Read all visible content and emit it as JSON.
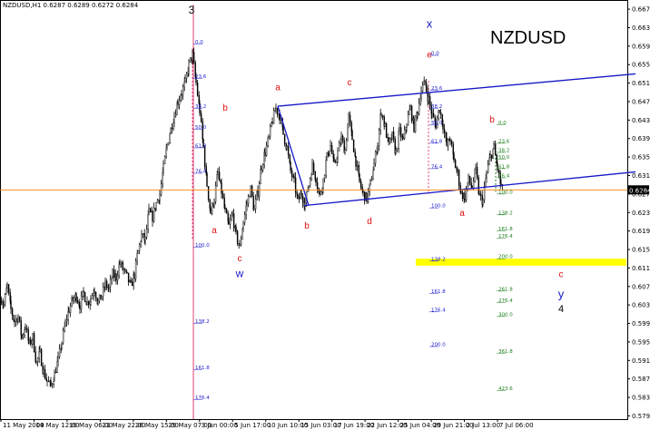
{
  "header": {
    "text": "NZDUSD,H1  0.6287 0.6289 0.6272 0.6284"
  },
  "symbol_label": "NZDUSD",
  "colors": {
    "candle": "#000000",
    "channel": "#1818c8",
    "wave_red": "#e01010",
    "wave_blue": "#1818c8",
    "fib_blue": "#2020d0",
    "fib_green": "#208020",
    "highlight": "#ffff00",
    "current_price": "#ff8000"
  },
  "chart_data": {
    "type": "candlestick",
    "timeframe": "H1",
    "ylim": [
      0.5788,
      0.6685
    ],
    "y_ticks": [
      "0.6675",
      "0.6635",
      "0.6595",
      "0.6555",
      "0.6515",
      "0.6475",
      "0.6435",
      "0.6395",
      "0.6355",
      "0.6315",
      "0.6275",
      "0.6235",
      "0.6195",
      "0.6155",
      "0.6115",
      "0.6075",
      "0.6035",
      "0.5995",
      "0.5955",
      "0.5915",
      "0.5875",
      "0.5835",
      "0.5795"
    ],
    "current_price": "0.6284",
    "x_ticks": [
      "11 May 2009",
      "14 May 12:00",
      "19 May 06:00",
      "21 May 22:00",
      "26 May 15:00",
      "29 May 07:00",
      "3 Jun 00:00",
      "5 Jun 17:00",
      "10 Jun 10:00",
      "15 Jun 03:00",
      "17 Jun 19:00",
      "22 Jun 12:00",
      "25 Jun 04:00",
      "29 Jun 21:00",
      "2 Jul 13:00",
      "7 Jul 06:00"
    ],
    "price_path": [
      [
        0,
        0.6055
      ],
      [
        4,
        0.6035
      ],
      [
        8,
        0.6075
      ],
      [
        12,
        0.6025
      ],
      [
        16,
        0.6
      ],
      [
        20,
        0.601
      ],
      [
        24,
        0.5965
      ],
      [
        28,
        0.599
      ],
      [
        32,
        0.595
      ],
      [
        36,
        0.5965
      ],
      [
        40,
        0.591
      ],
      [
        44,
        0.593
      ],
      [
        48,
        0.589
      ],
      [
        52,
        0.587
      ],
      [
        56,
        0.586
      ],
      [
        60,
        0.5885
      ],
      [
        64,
        0.5915
      ],
      [
        68,
        0.5955
      ],
      [
        72,
        0.5995
      ],
      [
        76,
        0.6025
      ],
      [
        80,
        0.6045
      ],
      [
        84,
        0.6055
      ],
      [
        88,
        0.6035
      ],
      [
        92,
        0.606
      ],
      [
        96,
        0.604
      ],
      [
        100,
        0.605
      ],
      [
        104,
        0.607
      ],
      [
        108,
        0.604
      ],
      [
        112,
        0.6055
      ],
      [
        116,
        0.608
      ],
      [
        120,
        0.607
      ],
      [
        124,
        0.61
      ],
      [
        128,
        0.6095
      ],
      [
        132,
        0.6125
      ],
      [
        136,
        0.611
      ],
      [
        140,
        0.6095
      ],
      [
        144,
        0.6075
      ],
      [
        148,
        0.61
      ],
      [
        152,
        0.615
      ],
      [
        156,
        0.6185
      ],
      [
        160,
        0.6175
      ],
      [
        164,
        0.6235
      ],
      [
        168,
        0.6225
      ],
      [
        172,
        0.6255
      ],
      [
        176,
        0.6275
      ],
      [
        180,
        0.633
      ],
      [
        184,
        0.638
      ],
      [
        188,
        0.6415
      ],
      [
        192,
        0.6445
      ],
      [
        196,
        0.6475
      ],
      [
        200,
        0.6495
      ],
      [
        204,
        0.6515
      ],
      [
        208,
        0.6555
      ],
      [
        212,
        0.6575
      ],
      [
        216,
        0.6515
      ],
      [
        220,
        0.6455
      ],
      [
        224,
        0.6375
      ],
      [
        228,
        0.6295
      ],
      [
        232,
        0.6235
      ],
      [
        236,
        0.6265
      ],
      [
        240,
        0.632
      ],
      [
        244,
        0.628
      ],
      [
        248,
        0.6235
      ],
      [
        252,
        0.6205
      ],
      [
        256,
        0.623
      ],
      [
        260,
        0.6185
      ],
      [
        264,
        0.616
      ],
      [
        268,
        0.6215
      ],
      [
        272,
        0.6255
      ],
      [
        276,
        0.6285
      ],
      [
        280,
        0.624
      ],
      [
        284,
        0.628
      ],
      [
        288,
        0.6335
      ],
      [
        292,
        0.6365
      ],
      [
        296,
        0.6395
      ],
      [
        300,
        0.6435
      ],
      [
        304,
        0.646
      ],
      [
        308,
        0.6445
      ],
      [
        312,
        0.6405
      ],
      [
        316,
        0.6375
      ],
      [
        320,
        0.6325
      ],
      [
        324,
        0.63
      ],
      [
        328,
        0.626
      ],
      [
        332,
        0.6275
      ],
      [
        336,
        0.6255
      ],
      [
        340,
        0.6295
      ],
      [
        344,
        0.6335
      ],
      [
        348,
        0.631
      ],
      [
        352,
        0.627
      ],
      [
        356,
        0.6305
      ],
      [
        360,
        0.6355
      ],
      [
        364,
        0.638
      ],
      [
        368,
        0.6335
      ],
      [
        372,
        0.6365
      ],
      [
        376,
        0.6395
      ],
      [
        380,
        0.637
      ],
      [
        384,
        0.644
      ],
      [
        388,
        0.6395
      ],
      [
        392,
        0.6345
      ],
      [
        396,
        0.63
      ],
      [
        400,
        0.6275
      ],
      [
        404,
        0.6265
      ],
      [
        408,
        0.6295
      ],
      [
        412,
        0.634
      ],
      [
        416,
        0.6385
      ],
      [
        420,
        0.6455
      ],
      [
        424,
        0.642
      ],
      [
        428,
        0.638
      ],
      [
        432,
        0.64
      ],
      [
        436,
        0.6365
      ],
      [
        440,
        0.641
      ],
      [
        444,
        0.639
      ],
      [
        448,
        0.643
      ],
      [
        452,
        0.646
      ],
      [
        456,
        0.642
      ],
      [
        460,
        0.6455
      ],
      [
        464,
        0.65
      ],
      [
        468,
        0.6515
      ],
      [
        472,
        0.648
      ],
      [
        476,
        0.6445
      ],
      [
        480,
        0.6425
      ],
      [
        484,
        0.646
      ],
      [
        488,
        0.6425
      ],
      [
        492,
        0.638
      ],
      [
        496,
        0.6395
      ],
      [
        500,
        0.6345
      ],
      [
        504,
        0.632
      ],
      [
        508,
        0.6275
      ],
      [
        512,
        0.627
      ],
      [
        516,
        0.6305
      ],
      [
        520,
        0.629
      ],
      [
        524,
        0.6325
      ],
      [
        528,
        0.627
      ],
      [
        532,
        0.626
      ],
      [
        536,
        0.632
      ],
      [
        540,
        0.6355
      ],
      [
        544,
        0.6375
      ],
      [
        548,
        0.633
      ],
      [
        552,
        0.629
      ],
      [
        554,
        0.6284
      ]
    ],
    "channel_lines": [
      {
        "name": "upper",
        "p1": [
          306,
          0.6465
        ],
        "p2": [
          700,
          0.6535
        ]
      },
      {
        "name": "lower",
        "p1": [
          335,
          0.625
        ],
        "p2": [
          700,
          0.6323
        ]
      },
      {
        "name": "short",
        "p1": [
          306,
          0.6465
        ],
        "p2": [
          340,
          0.625
        ]
      }
    ],
    "vertical_lines": [
      {
        "x": 213,
        "style": "solid",
        "color": "#e04070",
        "top": 0.6685,
        "bottom": 0.5788
      },
      {
        "x": 212,
        "style": "dotted",
        "color": "#e04070",
        "top": 0.6575,
        "bottom": 0.6175
      },
      {
        "x": 472,
        "style": "dotted",
        "color": "#e04070",
        "top": 0.652,
        "bottom": 0.6275
      },
      {
        "x": 546,
        "style": "dotted",
        "color": "#208020",
        "top": 0.6385,
        "bottom": 0.628
      }
    ],
    "highlight_band": {
      "from": 0.6135,
      "to": 0.612,
      "x1": 458,
      "x2": 690
    },
    "wave_labels": [
      {
        "text": "3",
        "x": 211,
        "y": 0.6665,
        "color": "#000000",
        "size": 12
      },
      {
        "text": "b",
        "x": 248,
        "y": 0.6455,
        "color": "#e01010",
        "size": 10
      },
      {
        "text": "a",
        "x": 236,
        "y": 0.619,
        "color": "#e01010",
        "size": 10
      },
      {
        "text": "c",
        "x": 264,
        "y": 0.613,
        "color": "#e01010",
        "size": 10
      },
      {
        "text": "w",
        "x": 264,
        "y": 0.6095,
        "color": "#1818c8",
        "size": 12
      },
      {
        "text": "a",
        "x": 306,
        "y": 0.65,
        "color": "#e01010",
        "size": 10
      },
      {
        "text": "c",
        "x": 385,
        "y": 0.651,
        "color": "#e01010",
        "size": 10
      },
      {
        "text": "b",
        "x": 338,
        "y": 0.62,
        "color": "#e01010",
        "size": 10
      },
      {
        "text": "d",
        "x": 407,
        "y": 0.621,
        "color": "#e01010",
        "size": 10
      },
      {
        "text": "x",
        "x": 473,
        "y": 0.6635,
        "color": "#1818c8",
        "size": 13
      },
      {
        "text": "e",
        "x": 473,
        "y": 0.657,
        "color": "#e01010",
        "size": 10
      },
      {
        "text": "a",
        "x": 509,
        "y": 0.6228,
        "color": "#e01010",
        "size": 10
      },
      {
        "text": "b",
        "x": 542,
        "y": 0.643,
        "color": "#e01010",
        "size": 10
      },
      {
        "text": "c",
        "x": 618,
        "y": 0.6095,
        "color": "#e01010",
        "size": 10
      },
      {
        "text": "y",
        "x": 618,
        "y": 0.605,
        "color": "#1818c8",
        "size": 13
      },
      {
        "text": "4",
        "x": 618,
        "y": 0.602,
        "color": "#000000",
        "size": 11
      }
    ],
    "fib_sets": [
      {
        "color": "#2020d0",
        "x": 213,
        "levels": [
          [
            "0.0",
            0.66
          ],
          [
            "23.6",
            0.6525
          ],
          [
            "38.2",
            0.646
          ],
          [
            "50.0",
            0.6415
          ],
          [
            "61.8",
            0.6375
          ],
          [
            "76.4",
            0.632
          ],
          [
            "100.0",
            0.616
          ],
          [
            "138.2",
            0.5995
          ],
          [
            "161.8",
            0.5895
          ],
          [
            "176.4",
            0.583
          ]
        ]
      },
      {
        "color": "#2020d0",
        "x": 473,
        "levels": [
          [
            "0.0",
            0.6575
          ],
          [
            "23.6",
            0.65
          ],
          [
            "38.2",
            0.646
          ],
          [
            "50.0",
            0.6425
          ],
          [
            "61.8",
            0.6385
          ],
          [
            "76.4",
            0.633
          ],
          [
            "100.0",
            0.6245
          ],
          [
            "138.2",
            0.613
          ],
          [
            "161.8",
            0.606
          ],
          [
            "176.4",
            0.602
          ],
          [
            "200.0",
            0.5945
          ]
        ]
      },
      {
        "color": "#208020",
        "x": 547,
        "levels": [
          [
            "0.0",
            0.6425
          ],
          [
            "23.6",
            0.6385
          ],
          [
            "38.2",
            0.6365
          ],
          [
            "50.0",
            0.635
          ],
          [
            "61.8",
            0.633
          ],
          [
            "76.4",
            0.631
          ],
          [
            "100.0",
            0.6275
          ],
          [
            "138.2",
            0.623
          ],
          [
            "161.8",
            0.6195
          ],
          [
            "176.4",
            0.618
          ],
          [
            "200.0",
            0.6135
          ],
          [
            "261.8",
            0.6065
          ],
          [
            "276.4",
            0.604
          ],
          [
            "300.0",
            0.601
          ],
          [
            "361.8",
            0.593
          ],
          [
            "423.6",
            0.585
          ]
        ]
      }
    ]
  }
}
